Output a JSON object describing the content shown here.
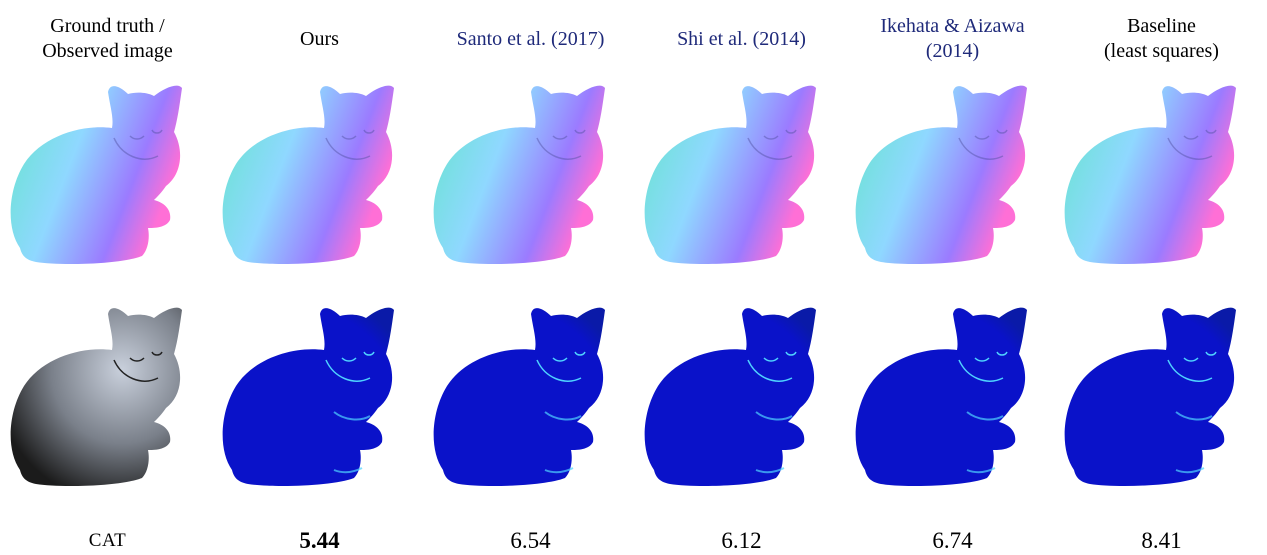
{
  "columns": [
    {
      "header": [
        "Ground truth /",
        "Observed image"
      ],
      "link": false,
      "caption": "CAT",
      "caption_style": "label"
    },
    {
      "header": [
        "Ours"
      ],
      "link": false,
      "caption": "5.44",
      "caption_style": "bold"
    },
    {
      "header": [
        "Santo et al. (2017)"
      ],
      "link": true,
      "caption": "6.54",
      "caption_style": "normal"
    },
    {
      "header": [
        "Shi et al. (2014)"
      ],
      "link": true,
      "caption": "6.12",
      "caption_style": "normal"
    },
    {
      "header": [
        "Ikehata & Aizawa",
        "(2014)"
      ],
      "link": true,
      "caption": "6.74",
      "caption_style": "normal"
    },
    {
      "header": [
        "Baseline",
        "(least squares)"
      ],
      "link": false,
      "caption": "8.41",
      "caption_style": "normal"
    }
  ],
  "colors": {
    "normal_map_top": "#8fd8ff",
    "normal_map_left": "#62e6c8",
    "normal_map_right": "#ff6fd6",
    "normal_map_bottom": "#9b7bff",
    "error_map_base": "#0a12c9",
    "error_map_highlight": "#4fd2ff",
    "observed_dark": "#1b1b1b",
    "observed_light": "#c9d0dc",
    "header_link": "#1f2a7a"
  },
  "images": {
    "row1": "normal-map",
    "row2": [
      "observed-image",
      "error-map",
      "error-map",
      "error-map",
      "error-map",
      "error-map"
    ]
  }
}
